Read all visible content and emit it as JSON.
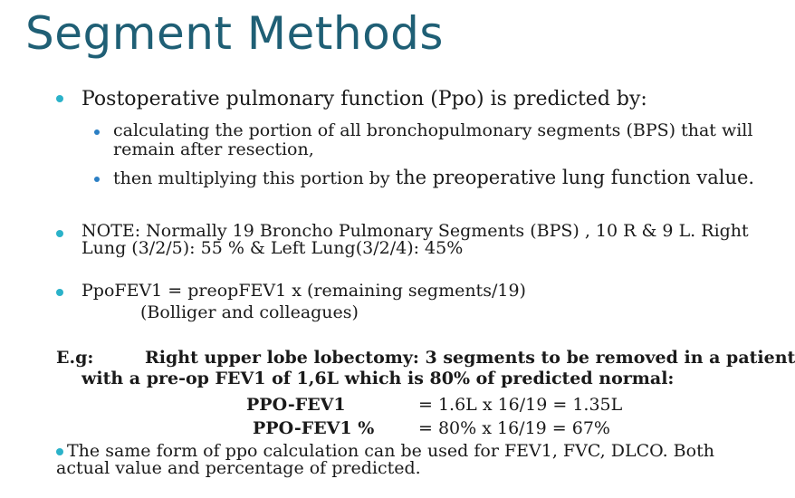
{
  "title": "Segment Methods",
  "bullet1": {
    "text": "Postoperative pulmonary function (Ppo) is predicted by:",
    "sub1": "calculating the portion of all bronchopulmonary segments (BPS) that will remain after resection,",
    "sub2_a": "then multiplying this portion by ",
    "sub2_b": "the preoperative lung function value."
  },
  "note": "NOTE: Normally 19 Broncho Pulmonary Segments (BPS) , 10 R & 9 L. Right Lung (3/2/5): 55 % & Left Lung(3/2/4): 45%",
  "formula": {
    "line1": "PpoFEV1 = preopFEV1 x (remaining segments/19)",
    "line2": "(Bolliger and colleagues)"
  },
  "example": {
    "label": "E.g:",
    "line1": "Right upper lobe lobectomy: 3 segments to be removed in a patient",
    "line2": "with a pre-op FEV1 of 1,6L which is 80% of predicted normal:",
    "calc1_label": "PPO-FEV1",
    "calc1_value": "= 1.6L x 16/19  = 1.35L",
    "calc2_label": "PPO-FEV1 %",
    "calc2_value": "= 80% x 16/19 = 67%"
  },
  "final": "The same form of ppo calculation can be used for FEV1, FVC, DLCO. Both actual value and percentage of predicted.",
  "colors": {
    "title": "#1f5f75",
    "bullet": "#2bb2c9",
    "subbullet": "#2b7fc4"
  }
}
